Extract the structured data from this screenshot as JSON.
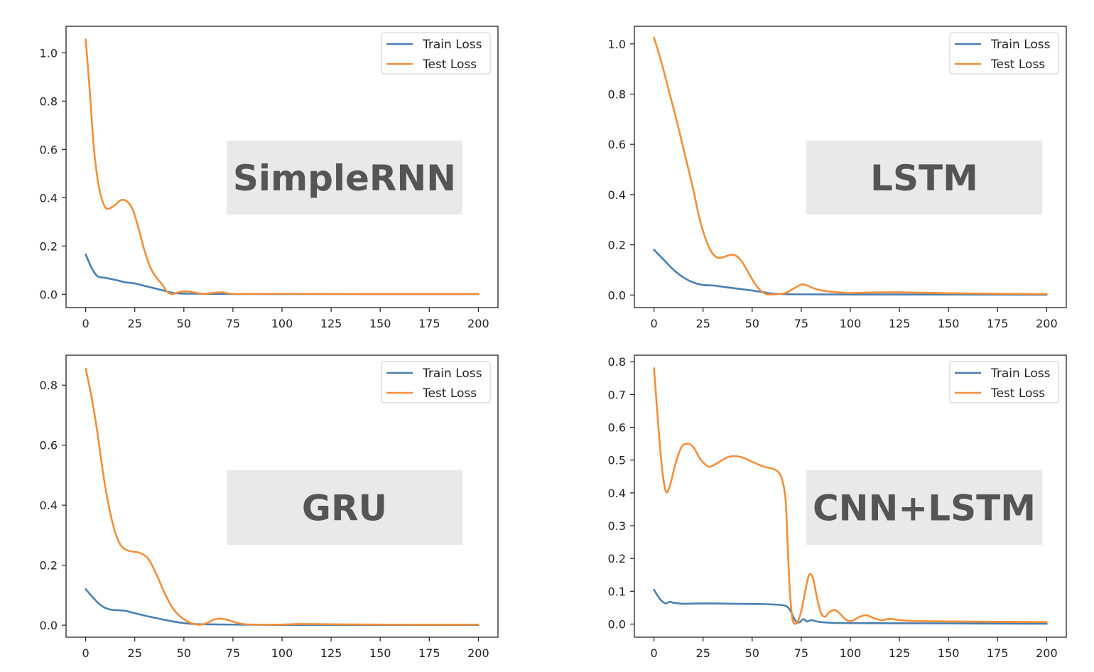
{
  "colors": {
    "train": "#4a7fb0",
    "test": "#f28e38",
    "label_box": "#e8e9e8",
    "label_text": "#555555"
  },
  "chart_data": [
    {
      "type": "line",
      "label": "SimpleRNN",
      "legend": [
        "Train Loss",
        "Test Loss"
      ],
      "xlim": [
        -10,
        210
      ],
      "ylim": [
        -0.055,
        1.11
      ],
      "xticks": [
        0,
        25,
        50,
        75,
        100,
        125,
        150,
        175,
        200
      ],
      "yticks": [
        0.0,
        0.2,
        0.4,
        0.6,
        0.8,
        1.0
      ],
      "series": [
        {
          "name": "Train Loss",
          "points": [
            [
              0,
              0.165
            ],
            [
              3,
              0.11
            ],
            [
              6,
              0.075
            ],
            [
              10,
              0.068
            ],
            [
              15,
              0.06
            ],
            [
              20,
              0.05
            ],
            [
              25,
              0.045
            ],
            [
              30,
              0.035
            ],
            [
              35,
              0.025
            ],
            [
              40,
              0.015
            ],
            [
              45,
              0.005
            ],
            [
              50,
              0.003
            ],
            [
              60,
              0.002
            ],
            [
              75,
              0.001
            ],
            [
              100,
              0.001
            ],
            [
              150,
              0.001
            ],
            [
              200,
              0.001
            ]
          ]
        },
        {
          "name": "Test Loss",
          "points": [
            [
              0,
              1.055
            ],
            [
              2,
              0.85
            ],
            [
              4,
              0.62
            ],
            [
              6,
              0.48
            ],
            [
              8,
              0.4
            ],
            [
              10,
              0.36
            ],
            [
              12,
              0.355
            ],
            [
              15,
              0.37
            ],
            [
              18,
              0.39
            ],
            [
              21,
              0.385
            ],
            [
              24,
              0.35
            ],
            [
              27,
              0.27
            ],
            [
              30,
              0.18
            ],
            [
              33,
              0.11
            ],
            [
              36,
              0.07
            ],
            [
              39,
              0.04
            ],
            [
              41,
              0.015
            ],
            [
              43,
              0.003
            ],
            [
              45,
              0.002
            ],
            [
              48,
              0.01
            ],
            [
              52,
              0.012
            ],
            [
              55,
              0.008
            ],
            [
              60,
              0.002
            ],
            [
              65,
              0.006
            ],
            [
              70,
              0.008
            ],
            [
              75,
              0.002
            ],
            [
              100,
              0.002
            ],
            [
              150,
              0.001
            ],
            [
              200,
              0.001
            ]
          ]
        }
      ]
    },
    {
      "type": "line",
      "label": "LSTM",
      "legend": [
        "Train Loss",
        "Test Loss"
      ],
      "xlim": [
        -10,
        210
      ],
      "ylim": [
        -0.05,
        1.07
      ],
      "xticks": [
        0,
        25,
        50,
        75,
        100,
        125,
        150,
        175,
        200
      ],
      "yticks": [
        0.0,
        0.2,
        0.4,
        0.6,
        0.8,
        1.0
      ],
      "series": [
        {
          "name": "Train Loss",
          "points": [
            [
              0,
              0.18
            ],
            [
              5,
              0.14
            ],
            [
              10,
              0.1
            ],
            [
              15,
              0.07
            ],
            [
              20,
              0.05
            ],
            [
              25,
              0.04
            ],
            [
              30,
              0.038
            ],
            [
              35,
              0.033
            ],
            [
              40,
              0.028
            ],
            [
              45,
              0.023
            ],
            [
              50,
              0.018
            ],
            [
              55,
              0.012
            ],
            [
              60,
              0.006
            ],
            [
              70,
              0.003
            ],
            [
              100,
              0.002
            ],
            [
              150,
              0.002
            ],
            [
              200,
              0.001
            ]
          ]
        },
        {
          "name": "Test Loss",
          "points": [
            [
              0,
              1.025
            ],
            [
              4,
              0.92
            ],
            [
              8,
              0.8
            ],
            [
              12,
              0.68
            ],
            [
              16,
              0.55
            ],
            [
              20,
              0.42
            ],
            [
              23,
              0.31
            ],
            [
              26,
              0.23
            ],
            [
              29,
              0.175
            ],
            [
              32,
              0.15
            ],
            [
              35,
              0.15
            ],
            [
              39,
              0.16
            ],
            [
              42,
              0.155
            ],
            [
              45,
              0.13
            ],
            [
              48,
              0.09
            ],
            [
              51,
              0.05
            ],
            [
              54,
              0.02
            ],
            [
              57,
              0.004
            ],
            [
              62,
              0.003
            ],
            [
              67,
              0.008
            ],
            [
              71,
              0.025
            ],
            [
              75,
              0.042
            ],
            [
              78,
              0.038
            ],
            [
              82,
              0.025
            ],
            [
              88,
              0.015
            ],
            [
              95,
              0.01
            ],
            [
              100,
              0.008
            ],
            [
              110,
              0.01
            ],
            [
              125,
              0.011
            ],
            [
              150,
              0.007
            ],
            [
              175,
              0.005
            ],
            [
              200,
              0.004
            ]
          ]
        }
      ]
    },
    {
      "type": "line",
      "label": "GRU",
      "legend": [
        "Train Loss",
        "Test Loss"
      ],
      "xlim": [
        -10,
        210
      ],
      "ylim": [
        -0.04,
        0.9
      ],
      "xticks": [
        0,
        25,
        50,
        75,
        100,
        125,
        150,
        175,
        200
      ],
      "yticks": [
        0.0,
        0.2,
        0.4,
        0.6,
        0.8
      ],
      "series": [
        {
          "name": "Train Loss",
          "points": [
            [
              0,
              0.12
            ],
            [
              4,
              0.09
            ],
            [
              8,
              0.065
            ],
            [
              12,
              0.053
            ],
            [
              16,
              0.05
            ],
            [
              20,
              0.048
            ],
            [
              25,
              0.04
            ],
            [
              30,
              0.032
            ],
            [
              35,
              0.025
            ],
            [
              40,
              0.018
            ],
            [
              45,
              0.012
            ],
            [
              50,
              0.007
            ],
            [
              55,
              0.004
            ],
            [
              60,
              0.003
            ],
            [
              75,
              0.002
            ],
            [
              100,
              0.001
            ],
            [
              150,
              0.001
            ],
            [
              200,
              0.001
            ]
          ]
        },
        {
          "name": "Test Loss",
          "points": [
            [
              0,
              0.855
            ],
            [
              3,
              0.76
            ],
            [
              6,
              0.64
            ],
            [
              9,
              0.5
            ],
            [
              12,
              0.39
            ],
            [
              15,
              0.31
            ],
            [
              18,
              0.265
            ],
            [
              21,
              0.25
            ],
            [
              24,
              0.245
            ],
            [
              28,
              0.24
            ],
            [
              32,
              0.22
            ],
            [
              36,
              0.17
            ],
            [
              40,
              0.11
            ],
            [
              44,
              0.06
            ],
            [
              48,
              0.03
            ],
            [
              52,
              0.012
            ],
            [
              56,
              0.003
            ],
            [
              59,
              0.002
            ],
            [
              62,
              0.008
            ],
            [
              65,
              0.018
            ],
            [
              68,
              0.022
            ],
            [
              72,
              0.018
            ],
            [
              76,
              0.01
            ],
            [
              80,
              0.004
            ],
            [
              85,
              0.002
            ],
            [
              100,
              0.002
            ],
            [
              110,
              0.004
            ],
            [
              125,
              0.003
            ],
            [
              150,
              0.002
            ],
            [
              200,
              0.002
            ]
          ]
        }
      ]
    },
    {
      "type": "line",
      "label": "CNN+LSTM",
      "legend": [
        "Train Loss",
        "Test Loss"
      ],
      "xlim": [
        -10,
        210
      ],
      "ylim": [
        -0.04,
        0.82
      ],
      "xticks": [
        0,
        25,
        50,
        75,
        100,
        125,
        150,
        175,
        200
      ],
      "yticks": [
        0.0,
        0.1,
        0.2,
        0.3,
        0.4,
        0.5,
        0.6,
        0.7,
        0.8
      ],
      "series": [
        {
          "name": "Train Loss",
          "points": [
            [
              0,
              0.105
            ],
            [
              2,
              0.085
            ],
            [
              4,
              0.07
            ],
            [
              6,
              0.063
            ],
            [
              8,
              0.068
            ],
            [
              10,
              0.065
            ],
            [
              15,
              0.062
            ],
            [
              25,
              0.063
            ],
            [
              40,
              0.062
            ],
            [
              55,
              0.061
            ],
            [
              65,
              0.058
            ],
            [
              68,
              0.052
            ],
            [
              70,
              0.035
            ],
            [
              72,
              0.01
            ],
            [
              74,
              0.005
            ],
            [
              76,
              0.015
            ],
            [
              78,
              0.008
            ],
            [
              80,
              0.012
            ],
            [
              84,
              0.007
            ],
            [
              90,
              0.004
            ],
            [
              100,
              0.003
            ],
            [
              150,
              0.002
            ],
            [
              200,
              0.001
            ]
          ]
        },
        {
          "name": "Test Loss",
          "points": [
            [
              0,
              0.78
            ],
            [
              2,
              0.62
            ],
            [
              4,
              0.48
            ],
            [
              6,
              0.405
            ],
            [
              8,
              0.42
            ],
            [
              11,
              0.49
            ],
            [
              14,
              0.54
            ],
            [
              17,
              0.55
            ],
            [
              20,
              0.54
            ],
            [
              24,
              0.5
            ],
            [
              28,
              0.48
            ],
            [
              32,
              0.49
            ],
            [
              38,
              0.51
            ],
            [
              44,
              0.51
            ],
            [
              50,
              0.495
            ],
            [
              56,
              0.48
            ],
            [
              62,
              0.47
            ],
            [
              65,
              0.445
            ],
            [
              67,
              0.38
            ],
            [
              68,
              0.25
            ],
            [
              69,
              0.12
            ],
            [
              70,
              0.04
            ],
            [
              71,
              0.005
            ],
            [
              73,
              0.005
            ],
            [
              75,
              0.04
            ],
            [
              77,
              0.1
            ],
            [
              79,
              0.15
            ],
            [
              81,
              0.14
            ],
            [
              83,
              0.08
            ],
            [
              85,
              0.035
            ],
            [
              87,
              0.022
            ],
            [
              89,
              0.035
            ],
            [
              92,
              0.043
            ],
            [
              95,
              0.03
            ],
            [
              98,
              0.012
            ],
            [
              101,
              0.01
            ],
            [
              104,
              0.02
            ],
            [
              108,
              0.027
            ],
            [
              112,
              0.018
            ],
            [
              116,
              0.012
            ],
            [
              120,
              0.016
            ],
            [
              124,
              0.013
            ],
            [
              130,
              0.01
            ],
            [
              150,
              0.008
            ],
            [
              175,
              0.007
            ],
            [
              200,
              0.006
            ]
          ]
        }
      ]
    }
  ]
}
